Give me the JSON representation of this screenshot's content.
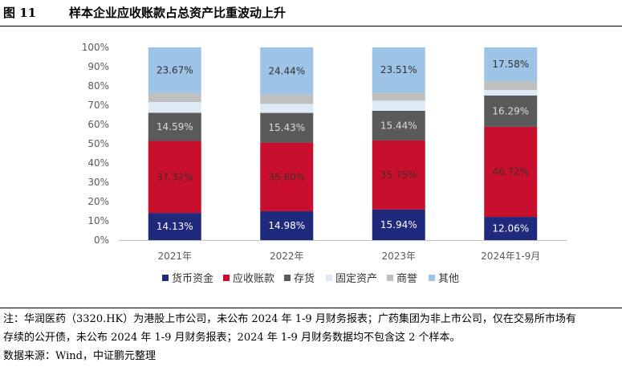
{
  "figure": {
    "number": "图 11",
    "title": "样本企业应收账款占总资产比重波动上升"
  },
  "chart_data": {
    "type": "stacked_bar_100",
    "categories": [
      "2021年",
      "2022年",
      "2023年",
      "2024年1-9月"
    ],
    "ylim": [
      0,
      100
    ],
    "yticks": [
      "0%",
      "10%",
      "20%",
      "30%",
      "40%",
      "50%",
      "60%",
      "70%",
      "80%",
      "90%",
      "100%"
    ],
    "series": [
      {
        "name": "货币资金",
        "color": "#1f2a7c",
        "label_color": "#ffffff",
        "values": [
          14.13,
          14.98,
          15.94,
          12.06
        ],
        "labels": [
          "14.13%",
          "14.98%",
          "15.94%",
          "12.06%"
        ]
      },
      {
        "name": "应收账款",
        "color": "#c8102e",
        "label_color": "#4a2a2a",
        "values": [
          37.32,
          35.6,
          35.75,
          46.72
        ],
        "labels": [
          "37.32%",
          "35.60%",
          "35.75%",
          "46.72%"
        ]
      },
      {
        "name": "存货",
        "color": "#5a5a5a",
        "label_color": "#d9d9d9",
        "values": [
          14.59,
          15.43,
          15.44,
          16.29
        ],
        "labels": [
          "14.59%",
          "15.43%",
          "15.44%",
          "16.29%"
        ]
      },
      {
        "name": "固定资产",
        "color": "#dde9f5",
        "label_color": "#333333",
        "values": [
          5.6,
          4.7,
          5.2,
          2.8
        ],
        "labels": [
          "",
          "",
          "",
          ""
        ]
      },
      {
        "name": "商誉",
        "color": "#bfbfbf",
        "label_color": "#333333",
        "values": [
          4.69,
          4.85,
          4.16,
          4.55
        ],
        "labels": [
          "",
          "",
          "",
          ""
        ]
      },
      {
        "name": "其他",
        "color": "#9dc3e6",
        "label_color": "#333333",
        "values": [
          23.67,
          24.44,
          23.51,
          17.58
        ],
        "labels": [
          "23.67%",
          "24.44%",
          "23.51%",
          "17.58%"
        ]
      }
    ]
  },
  "notes": {
    "line1": "注：华润医药（3320.HK）为港股上市公司，未公布 2024 年 1-9 月财务报表；广药集团为非上市公司，仅在交易所市场有",
    "line2": "存续的公开债，未公布 2024 年 1-9 月财务报表；2024 年 1-9 月财务数据均不包含这 2 个样本。",
    "source": "数据来源：Wind，中证鹏元整理"
  }
}
